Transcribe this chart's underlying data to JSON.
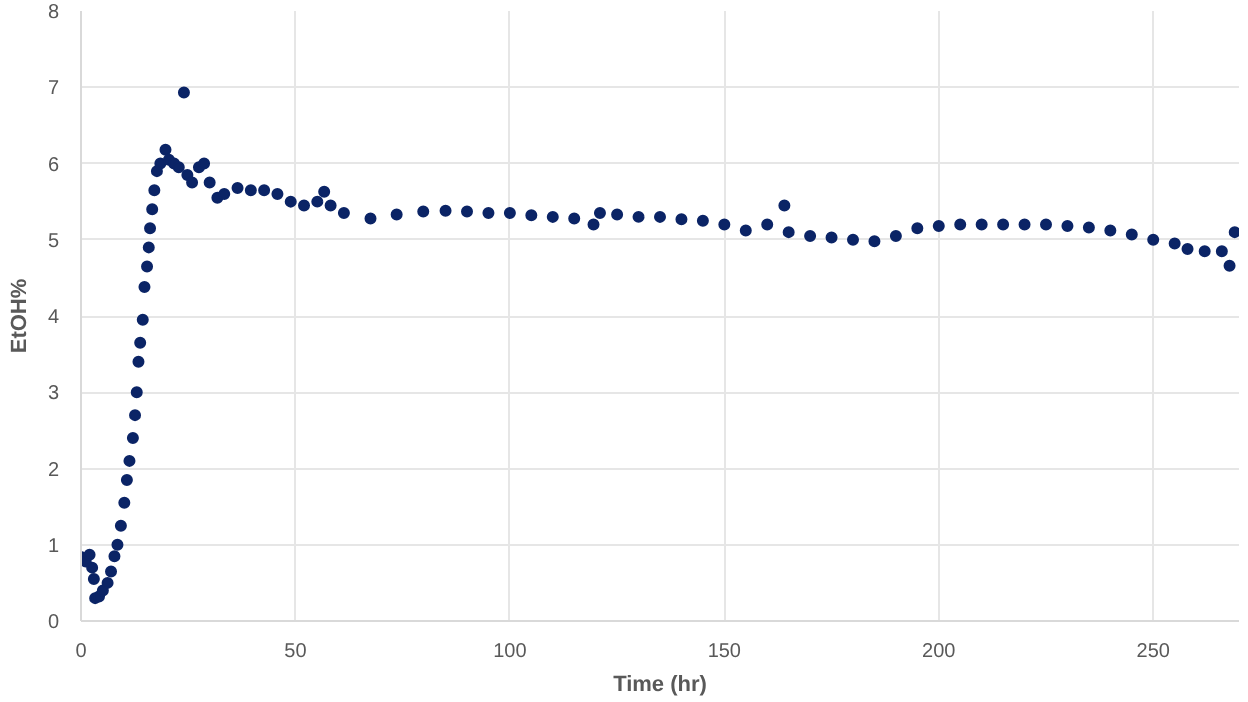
{
  "chart_data": {
    "type": "scatter",
    "xlabel": "Time (hr)",
    "ylabel": "EtOH%",
    "xlim": [
      0,
      270
    ],
    "ylim": [
      0,
      8
    ],
    "xticks": [
      0,
      50,
      100,
      150,
      200,
      250
    ],
    "yticks": [
      0,
      1,
      2,
      3,
      4,
      5,
      6,
      7,
      8
    ],
    "grid": true,
    "marker": "circle",
    "series": [
      {
        "color": "#0b2466",
        "x": [
          0,
          1.1,
          2,
          2.6,
          3,
          3.3,
          4.2,
          5.1,
          6.2,
          7,
          7.8,
          8.5,
          9.3,
          10.1,
          10.7,
          11.3,
          12.1,
          12.6,
          13,
          13.4,
          13.8,
          14.4,
          14.8,
          15.4,
          15.8,
          16.1,
          16.6,
          17.1,
          17.7,
          18.5,
          19.7,
          20.5,
          21.7,
          22.8,
          24,
          24.8,
          25.9,
          27.5,
          28.7,
          30,
          31.8,
          33.4,
          36.5,
          39.6,
          42.7,
          45.8,
          48.9,
          52,
          55.1,
          56.7,
          58.2,
          61.3,
          67.5,
          73.6,
          79.8,
          85,
          90,
          95,
          100,
          105,
          110,
          115,
          119.5,
          121,
          125,
          130,
          135,
          140,
          145,
          150,
          155,
          160,
          164,
          165,
          170,
          175,
          180,
          185,
          190,
          195,
          200,
          205,
          210,
          215,
          220,
          225,
          230,
          235,
          240,
          245,
          250,
          255,
          258,
          262,
          266,
          267.8,
          269
        ],
        "values": [
          0.84,
          0.78,
          0.87,
          0.7,
          0.55,
          0.3,
          0.32,
          0.4,
          0.5,
          0.65,
          0.85,
          1.0,
          1.25,
          1.55,
          1.85,
          2.1,
          2.4,
          2.7,
          3.0,
          3.4,
          3.65,
          3.95,
          4.38,
          4.65,
          4.9,
          5.15,
          5.4,
          5.65,
          5.9,
          6.0,
          6.18,
          6.05,
          6.0,
          5.95,
          6.93,
          5.85,
          5.75,
          5.95,
          6.0,
          5.75,
          5.55,
          5.6,
          5.68,
          5.65,
          5.65,
          5.6,
          5.5,
          5.45,
          5.5,
          5.63,
          5.45,
          5.35,
          5.28,
          5.33,
          5.37,
          5.38,
          5.37,
          5.35,
          5.35,
          5.32,
          5.3,
          5.28,
          5.2,
          5.35,
          5.33,
          5.3,
          5.3,
          5.27,
          5.25,
          5.2,
          5.12,
          5.2,
          5.45,
          5.1,
          5.05,
          5.03,
          5.0,
          4.98,
          5.05,
          5.15,
          5.18,
          5.2,
          5.2,
          5.2,
          5.2,
          5.2,
          5.18,
          5.16,
          5.12,
          5.07,
          5.0,
          4.95,
          4.88,
          4.85,
          4.85,
          4.66,
          5.1
        ]
      }
    ]
  }
}
